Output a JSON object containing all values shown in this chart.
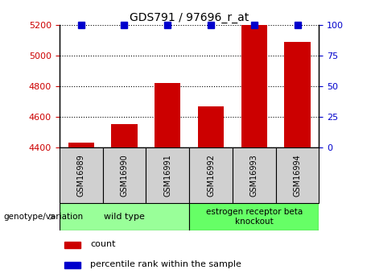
{
  "title": "GDS791 / 97696_r_at",
  "categories": [
    "GSM16989",
    "GSM16990",
    "GSM16991",
    "GSM16992",
    "GSM16993",
    "GSM16994"
  ],
  "count_values": [
    4430,
    4550,
    4820,
    4670,
    5200,
    5090
  ],
  "ylim_left": [
    4400,
    5200
  ],
  "ylim_right": [
    0,
    100
  ],
  "yticks_left": [
    4400,
    4600,
    4800,
    5000,
    5200
  ],
  "yticks_right": [
    0,
    25,
    50,
    75,
    100
  ],
  "bar_color": "#cc0000",
  "percentile_color": "#0000cc",
  "bg_color": "#ffffff",
  "group1_label": "wild type",
  "group1_indices": [
    0,
    1,
    2
  ],
  "group1_color": "#99ff99",
  "group2_label": "estrogen receptor beta\nknockout",
  "group2_indices": [
    3,
    4,
    5
  ],
  "group2_color": "#66ff66",
  "genotype_label": "genotype/variation",
  "legend_count": "count",
  "legend_percentile": "percentile rank within the sample",
  "bar_width": 0.6,
  "tick_bg_color": "#d0d0d0",
  "title_fontsize": 10,
  "label_fontsize": 8,
  "right_tick_color": "#0000cc"
}
